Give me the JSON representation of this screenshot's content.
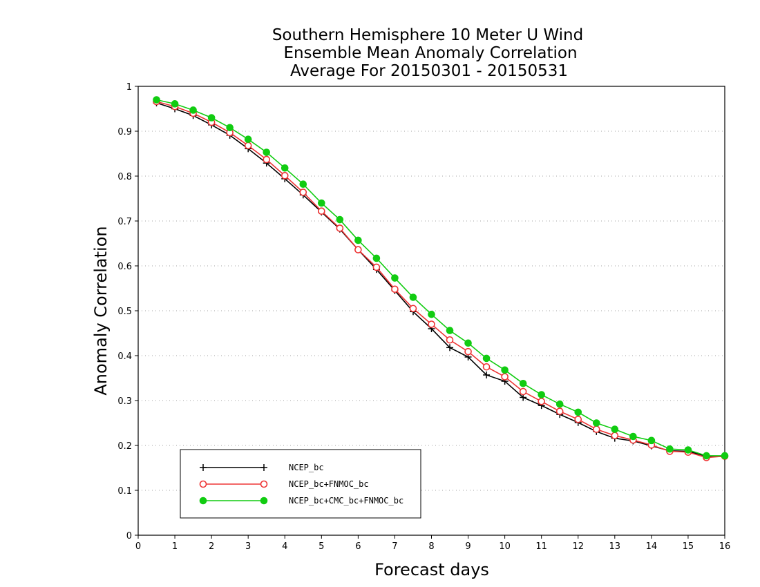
{
  "chart_data": {
    "type": "line",
    "title_lines": [
      "Southern Hemisphere 10 Meter U Wind",
      "Ensemble Mean Anomaly Correlation",
      "Average For 20150301 - 20150531"
    ],
    "xlabel": "Forecast days",
    "ylabel": "Anomaly Correlation",
    "xlim": [
      0,
      16
    ],
    "ylim": [
      0,
      1
    ],
    "xticks": [
      "0",
      "1",
      "2",
      "3",
      "4",
      "5",
      "6",
      "7",
      "8",
      "9",
      "10",
      "11",
      "12",
      "13",
      "14",
      "15",
      "16"
    ],
    "yticks": [
      "0",
      "0.1",
      "0.2",
      "0.3",
      "0.4",
      "0.5",
      "0.6",
      "0.7",
      "0.8",
      "0.9",
      "1"
    ],
    "grid": "dotted horizontal",
    "legend_position": "bottom-left",
    "x": [
      0.5,
      1,
      1.5,
      2,
      2.5,
      3,
      3.5,
      4,
      4.5,
      5,
      5.5,
      6,
      6.5,
      7,
      7.5,
      8,
      8.5,
      9,
      9.5,
      10,
      10.5,
      11,
      11.5,
      12,
      12.5,
      13,
      13.5,
      14,
      14.5,
      15,
      15.5,
      16
    ],
    "series": [
      {
        "name": "NCEP_bc",
        "color": "#000000",
        "marker": "plus",
        "values": [
          0.963,
          0.95,
          0.935,
          0.914,
          0.891,
          0.861,
          0.829,
          0.794,
          0.758,
          0.72,
          0.682,
          0.636,
          0.592,
          0.545,
          0.498,
          0.46,
          0.418,
          0.397,
          0.357,
          0.343,
          0.307,
          0.289,
          0.269,
          0.251,
          0.231,
          0.216,
          0.21,
          0.199,
          0.188,
          0.187,
          0.176,
          0.175
        ]
      },
      {
        "name": "NCEP_bc+FNMOC_bc",
        "color": "#ee3333",
        "marker": "open-circle",
        "values": [
          0.966,
          0.955,
          0.94,
          0.92,
          0.897,
          0.868,
          0.837,
          0.801,
          0.764,
          0.722,
          0.684,
          0.636,
          0.597,
          0.548,
          0.505,
          0.47,
          0.435,
          0.409,
          0.375,
          0.353,
          0.32,
          0.298,
          0.276,
          0.258,
          0.236,
          0.222,
          0.212,
          0.201,
          0.187,
          0.185,
          0.173,
          0.176
        ]
      },
      {
        "name": "NCEP_bc+CMC_bc+FNMOC_bc",
        "color": "#11cc11",
        "marker": "filled-circle",
        "values": [
          0.97,
          0.961,
          0.947,
          0.93,
          0.908,
          0.882,
          0.853,
          0.818,
          0.782,
          0.74,
          0.703,
          0.657,
          0.617,
          0.573,
          0.53,
          0.492,
          0.456,
          0.428,
          0.394,
          0.368,
          0.338,
          0.313,
          0.292,
          0.274,
          0.25,
          0.236,
          0.22,
          0.211,
          0.192,
          0.19,
          0.177,
          0.177
        ]
      }
    ]
  }
}
